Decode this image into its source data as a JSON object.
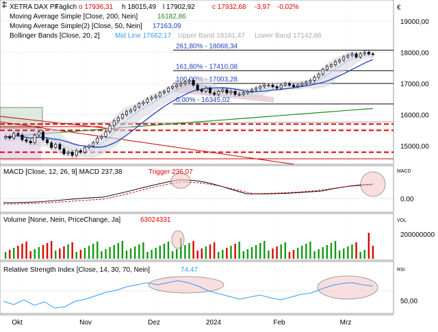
{
  "chart_data": {
    "type": "candlestick",
    "instrument": "XETRA DAX PF",
    "interval": "Täglich",
    "ohlc": {
      "o": "17936,31",
      "h": "18015,49",
      "l": "17902,92",
      "c": "17932,68",
      "chg": "-3,97",
      "chg_pct": "-0,02%"
    },
    "currency_label": "€",
    "x_ticks": [
      "Okt",
      "Nov",
      "Dez",
      "2024",
      "Feb",
      "Mrz"
    ],
    "panes": [
      {
        "id": "price",
        "legend": [
          {
            "label": "XETRA DAX PF",
            "extra": "Täglich"
          },
          {
            "label": "Moving Average Simple",
            "params": "[Close, 200, Nein]",
            "value": "16182,86",
            "color": "#1a8a1a"
          },
          {
            "label": "Moving Average Simple(2)",
            "params": "[Close, 50, Nein]",
            "value": "17163,09",
            "color": "#1a3fc4"
          },
          {
            "label": "Bollinger Bands",
            "params": "[Close, 20, 2]",
            "mid": "Mid Line 17662,17",
            "upper": "Upper Band 18181,47",
            "lower": "Lower Band 17142,86"
          }
        ],
        "y_ticks": [
          "19000,00",
          "18000,00",
          "17000,00",
          "16000,00",
          "15000,00"
        ],
        "y_range": [
          14500,
          19500
        ],
        "fibonacci": [
          {
            "label": "261,80% - 18068,34",
            "value": 18068.34
          },
          {
            "label": "161,80% - 17410,08",
            "value": 17410.08
          },
          {
            "label": "100,00% - 17003,28",
            "value": 17003.28
          },
          {
            "label": "0,00% - 16345,02",
            "value": 16345.02
          }
        ],
        "support_levels": [
          15700,
          15500,
          14800
        ],
        "close_series": [
          15300,
          15250,
          15400,
          15350,
          15200,
          15150,
          15100,
          15350,
          15450,
          15200,
          15100,
          14950,
          15050,
          14900,
          14750,
          14800,
          14700,
          14850,
          14800,
          14950,
          15000,
          15100,
          15250,
          15300,
          15450,
          15650,
          15800,
          15900,
          16000,
          16100,
          16150,
          16250,
          16350,
          16400,
          16500,
          16550,
          16600,
          16700,
          16750,
          16850,
          16900,
          16950,
          17000,
          17050,
          17100,
          16950,
          16800,
          16750,
          16850,
          16700,
          16650,
          16750,
          16800,
          16700,
          16750,
          16650,
          16650,
          16700,
          16750,
          16800,
          16850,
          16900,
          16950,
          16950,
          16900,
          16850,
          16950,
          17000,
          16950,
          16900,
          16950,
          17000,
          17050,
          17100,
          17200,
          17300,
          17450,
          17550,
          17600,
          17700,
          17750,
          17850,
          17900,
          17950,
          17850,
          17950,
          18000,
          17950,
          17930
        ]
      },
      {
        "id": "macd",
        "legend": "MACD [Close, 12, 26, 9] MACD 237,38",
        "trigger_label": "Trigger 236,07",
        "tag": "MACD",
        "y_ticks": [
          "0,00"
        ],
        "y_range": [
          -200,
          400
        ]
      },
      {
        "id": "volume",
        "legend": "Volume [None, Nein, PriceChange, Ja]",
        "value_label": "63024331",
        "tag": "VOL",
        "y_ticks": [
          "200000000"
        ],
        "y_range": [
          0,
          260000000
        ]
      },
      {
        "id": "rsi",
        "legend": "Relative Strength Index [Close, 14, 30, 70, Nein]",
        "value_label": "74,47",
        "tag": "RSI",
        "y_ticks": [
          "50,00"
        ],
        "y_range": [
          20,
          90
        ]
      }
    ]
  }
}
